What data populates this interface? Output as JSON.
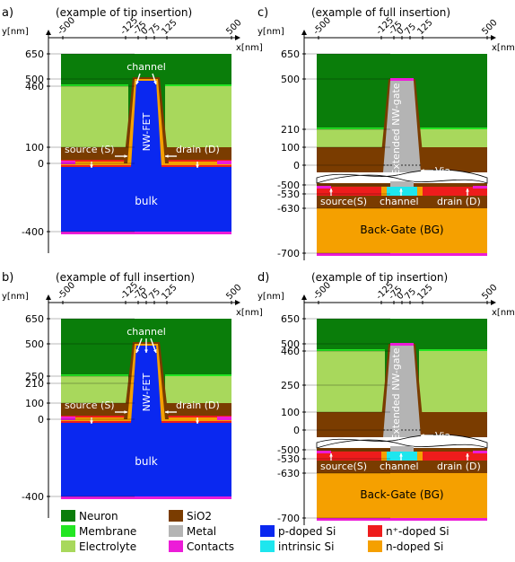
{
  "panels": [
    {
      "id": "a",
      "letter": "a)",
      "caption": "(example of tip insertion)",
      "variant": "nwfet",
      "insertion": "tip",
      "x_ticks": [
        "-500",
        "-125",
        "-75",
        "0",
        "75",
        "125",
        "500"
      ],
      "x_unit": "x[nm]",
      "y_unit": "y[nm]",
      "y_ticks": [
        "650",
        "500",
        "460",
        "100",
        "0",
        "-400"
      ],
      "labels": {
        "channel": "channel",
        "device": "NW-FET",
        "source": "source (S)",
        "drain": "drain (D)",
        "bulk": "bulk"
      }
    },
    {
      "id": "b",
      "letter": "b)",
      "caption": "(example of full insertion)",
      "variant": "nwfet",
      "insertion": "full",
      "x_ticks": [
        "-500",
        "-125",
        "-75",
        "0",
        "75",
        "125",
        "500"
      ],
      "x_unit": "x[nm]",
      "y_unit": "y[nm]",
      "y_ticks": [
        "650",
        "500",
        "250",
        "210",
        "100",
        "0",
        "-400"
      ],
      "labels": {
        "channel": "channel",
        "device": "NW-FET",
        "source": "source (S)",
        "drain": "drain (D)",
        "bulk": "bulk"
      }
    },
    {
      "id": "c",
      "letter": "c)",
      "caption": "(example of full insertion)",
      "variant": "extended",
      "insertion": "full",
      "x_ticks": [
        "-500",
        "-125",
        "-75",
        "0",
        "75",
        "125",
        "500"
      ],
      "x_unit": "x[nm]",
      "y_unit": "y[nm]",
      "y_ticks": [
        "650",
        "500",
        "210",
        "100",
        "0",
        "-500",
        "-530",
        "-630",
        "-700"
      ],
      "labels": {
        "device": "Extended NW-gate",
        "via": "Via",
        "source": "source(S)",
        "channel": "channel",
        "drain": "drain (D)",
        "backgate": "Back-Gate (BG)"
      }
    },
    {
      "id": "d",
      "letter": "d)",
      "caption": "(example of tip insertion)",
      "variant": "extended",
      "insertion": "tip",
      "x_ticks": [
        "-500",
        "-125",
        "-75",
        "0",
        "75",
        "125",
        "500"
      ],
      "x_unit": "x[nm]",
      "y_unit": "y[nm]",
      "y_ticks": [
        "650",
        "500",
        "460",
        "250",
        "100",
        "0",
        "-500",
        "-530",
        "-630",
        "-700"
      ],
      "labels": {
        "device": "Extended NW-gate",
        "via": "Via",
        "source": "source(S)",
        "channel": "channel",
        "drain": "drain (D)",
        "backgate": "Back-Gate (BG)"
      }
    }
  ],
  "legend": [
    {
      "label": "Neuron",
      "color": "#0a7d0a"
    },
    {
      "label": "SiO2",
      "color": "#7a3c00"
    },
    {
      "label": "Membrane",
      "color": "#22e622"
    },
    {
      "label": "Metal",
      "color": "#b4b4b4"
    },
    {
      "label": "p-doped Si",
      "color": "#0a28f0"
    },
    {
      "label": "n⁺-doped Si",
      "color": "#ee1c1c"
    },
    {
      "label": "Electrolyte",
      "color": "#a8d85c"
    },
    {
      "label": "Contacts",
      "color": "#ec1cd8"
    },
    {
      "label": "intrinsic Si",
      "color": "#1ee6ee"
    },
    {
      "label": "n-doped Si",
      "color": "#f5a000"
    }
  ]
}
